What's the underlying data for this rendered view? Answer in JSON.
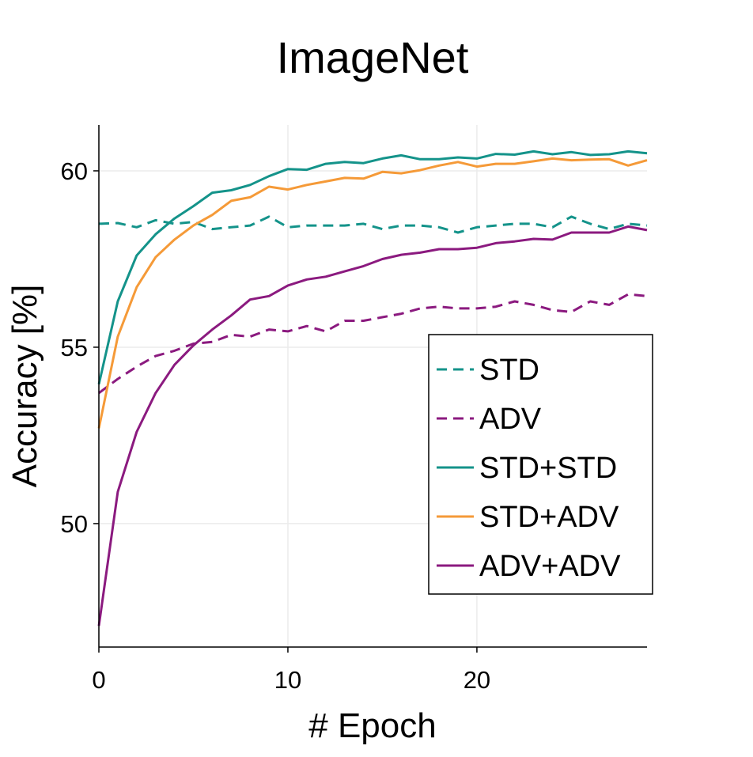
{
  "chart_data": {
    "type": "line",
    "title": "ImageNet",
    "xlabel": "# Epoch",
    "ylabel": "Accuracy [%]",
    "xlim": [
      0,
      29
    ],
    "ylim": [
      46.5,
      61.3
    ],
    "xticks": [
      0,
      10,
      20
    ],
    "xtick_labels": [
      "0",
      "10",
      "20"
    ],
    "yticks": [
      50,
      55,
      60
    ],
    "ytick_labels": [
      "50",
      "55",
      "60"
    ],
    "grid": true,
    "legend_position": "lower-right",
    "x": [
      0,
      1,
      2,
      3,
      4,
      5,
      6,
      7,
      8,
      9,
      10,
      11,
      12,
      13,
      14,
      15,
      16,
      17,
      18,
      19,
      20,
      21,
      22,
      23,
      24,
      25,
      26,
      27,
      28,
      29
    ],
    "series": [
      {
        "name": "STD",
        "color": "#14938a",
        "dash": "dashed",
        "values": [
          58.5,
          58.52,
          58.4,
          58.6,
          58.5,
          58.55,
          58.35,
          58.4,
          58.45,
          58.7,
          58.4,
          58.45,
          58.45,
          58.45,
          58.5,
          58.35,
          58.45,
          58.45,
          58.4,
          58.25,
          58.4,
          58.45,
          58.5,
          58.5,
          58.4,
          58.7,
          58.5,
          58.35,
          58.5,
          58.45
        ]
      },
      {
        "name": "ADV",
        "color": "#8b1a7f",
        "dash": "dashed",
        "values": [
          53.7,
          54.1,
          54.45,
          54.75,
          54.9,
          55.1,
          55.15,
          55.35,
          55.3,
          55.5,
          55.45,
          55.6,
          55.45,
          55.75,
          55.75,
          55.85,
          55.95,
          56.1,
          56.15,
          56.1,
          56.1,
          56.15,
          56.3,
          56.2,
          56.05,
          56.0,
          56.3,
          56.2,
          56.5,
          56.45
        ]
      },
      {
        "name": "STD+STD",
        "color": "#14938a",
        "dash": "solid",
        "values": [
          53.95,
          56.3,
          57.6,
          58.2,
          58.65,
          59.0,
          59.38,
          59.45,
          59.6,
          59.85,
          60.05,
          60.03,
          60.2,
          60.25,
          60.22,
          60.35,
          60.44,
          60.33,
          60.33,
          60.38,
          60.35,
          60.48,
          60.46,
          60.55,
          60.47,
          60.53,
          60.45,
          60.47,
          60.55,
          60.5
        ]
      },
      {
        "name": "STD+ADV",
        "color": "#f59a38",
        "dash": "solid",
        "values": [
          52.7,
          55.3,
          56.7,
          57.55,
          58.05,
          58.45,
          58.75,
          59.15,
          59.25,
          59.55,
          59.47,
          59.6,
          59.7,
          59.8,
          59.78,
          59.97,
          59.93,
          60.02,
          60.15,
          60.25,
          60.12,
          60.2,
          60.2,
          60.27,
          60.35,
          60.3,
          60.32,
          60.33,
          60.15,
          60.3
        ]
      },
      {
        "name": "ADV+ADV",
        "color": "#8b1a7f",
        "dash": "solid",
        "values": [
          47.1,
          50.9,
          52.6,
          53.7,
          54.5,
          55.05,
          55.5,
          55.9,
          56.35,
          56.45,
          56.75,
          56.92,
          57.0,
          57.15,
          57.3,
          57.5,
          57.62,
          57.68,
          57.78,
          57.78,
          57.82,
          57.95,
          58.0,
          58.07,
          58.05,
          58.25,
          58.25,
          58.25,
          58.42,
          58.32
        ]
      }
    ]
  }
}
